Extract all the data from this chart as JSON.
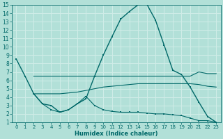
{
  "xlabel": "Humidex (Indice chaleur)",
  "bg_color": "#b2e0d8",
  "grid_color": "#d0ede8",
  "line_color": "#006868",
  "xlim": [
    -0.5,
    23.5
  ],
  "ylim": [
    1,
    15
  ],
  "yticks": [
    1,
    2,
    3,
    4,
    5,
    6,
    7,
    8,
    9,
    10,
    11,
    12,
    13,
    14,
    15
  ],
  "xticks": [
    0,
    1,
    2,
    3,
    4,
    5,
    6,
    7,
    8,
    9,
    10,
    11,
    12,
    13,
    14,
    15,
    16,
    17,
    18,
    19,
    20,
    21,
    22,
    23
  ],
  "line1_x": [
    0,
    1,
    2,
    3,
    4,
    5,
    6,
    7,
    8,
    9,
    10,
    11,
    12,
    13,
    14,
    15,
    16,
    17,
    18,
    19,
    20,
    21,
    22,
    23
  ],
  "line1_y": [
    8.5,
    6.5,
    4.4,
    3.2,
    3.0,
    2.2,
    2.5,
    3.2,
    3.8,
    6.5,
    9.0,
    11.2,
    13.3,
    14.2,
    15.0,
    15.1,
    13.2,
    10.2,
    7.2,
    6.7,
    5.2,
    3.4,
    1.7,
    1.0
  ],
  "line2_x": [
    2,
    3,
    4,
    5,
    6,
    7,
    8,
    9,
    10,
    11,
    12,
    13,
    14,
    15,
    16,
    17,
    18,
    19,
    20,
    21,
    22,
    23
  ],
  "line2_y": [
    6.5,
    6.5,
    6.5,
    6.5,
    6.5,
    6.5,
    6.5,
    6.5,
    6.5,
    6.5,
    6.5,
    6.5,
    6.5,
    6.5,
    6.5,
    6.5,
    6.5,
    6.5,
    6.5,
    7.0,
    6.8,
    6.8
  ],
  "line3_x": [
    2,
    3,
    4,
    5,
    6,
    7,
    8,
    9,
    10,
    11,
    12,
    13,
    14,
    15,
    16,
    17,
    18,
    19,
    20,
    21,
    22,
    23
  ],
  "line3_y": [
    4.4,
    4.4,
    4.4,
    4.4,
    4.5,
    4.6,
    4.8,
    5.0,
    5.2,
    5.3,
    5.4,
    5.5,
    5.6,
    5.6,
    5.6,
    5.6,
    5.6,
    5.6,
    5.6,
    5.5,
    5.3,
    5.2
  ],
  "line4_x": [
    2,
    3,
    4,
    5,
    6,
    7,
    8,
    9,
    10,
    11,
    12,
    13,
    14,
    15,
    16,
    17,
    18,
    19,
    20,
    21,
    22,
    23
  ],
  "line4_y": [
    4.4,
    3.2,
    2.5,
    2.2,
    2.5,
    3.2,
    4.1,
    3.0,
    2.5,
    2.3,
    2.2,
    2.2,
    2.2,
    2.1,
    2.0,
    2.0,
    1.9,
    1.8,
    1.5,
    1.2,
    1.2,
    1.0
  ]
}
